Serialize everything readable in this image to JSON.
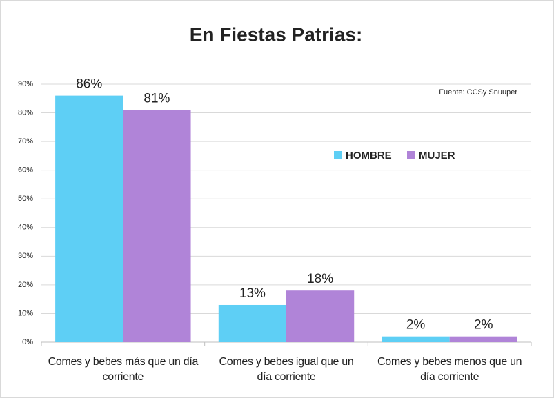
{
  "chart_data": {
    "type": "bar",
    "title": "En Fiestas Patrias:",
    "annotation": "Fuente: CCSy Snuuper",
    "categories": [
      "Comes y bebes más que un día corriente",
      "Comes y bebes igual que un día corriente",
      "Comes y bebes menos que un día corriente"
    ],
    "series": [
      {
        "name": "HOMBRE",
        "color": "#5ecff5",
        "values": [
          86,
          13,
          2
        ],
        "value_labels": [
          "86%",
          "13%",
          "2%"
        ]
      },
      {
        "name": "MUJER",
        "color": "#b084d8",
        "values": [
          81,
          18,
          2
        ],
        "value_labels": [
          "81%",
          "18%",
          "2%"
        ]
      }
    ],
    "ylim": [
      0,
      90
    ],
    "yticks": [
      {
        "value": 0,
        "label": "0%"
      },
      {
        "value": 10,
        "label": "10%"
      },
      {
        "value": 20,
        "label": "20%"
      },
      {
        "value": 30,
        "label": "30%"
      },
      {
        "value": 40,
        "label": "40%"
      },
      {
        "value": 50,
        "label": "50%"
      },
      {
        "value": 60,
        "label": "60%"
      },
      {
        "value": 70,
        "label": "70%"
      },
      {
        "value": 80,
        "label": "80%"
      },
      {
        "value": 90,
        "label": "90%"
      }
    ],
    "grid": true
  }
}
